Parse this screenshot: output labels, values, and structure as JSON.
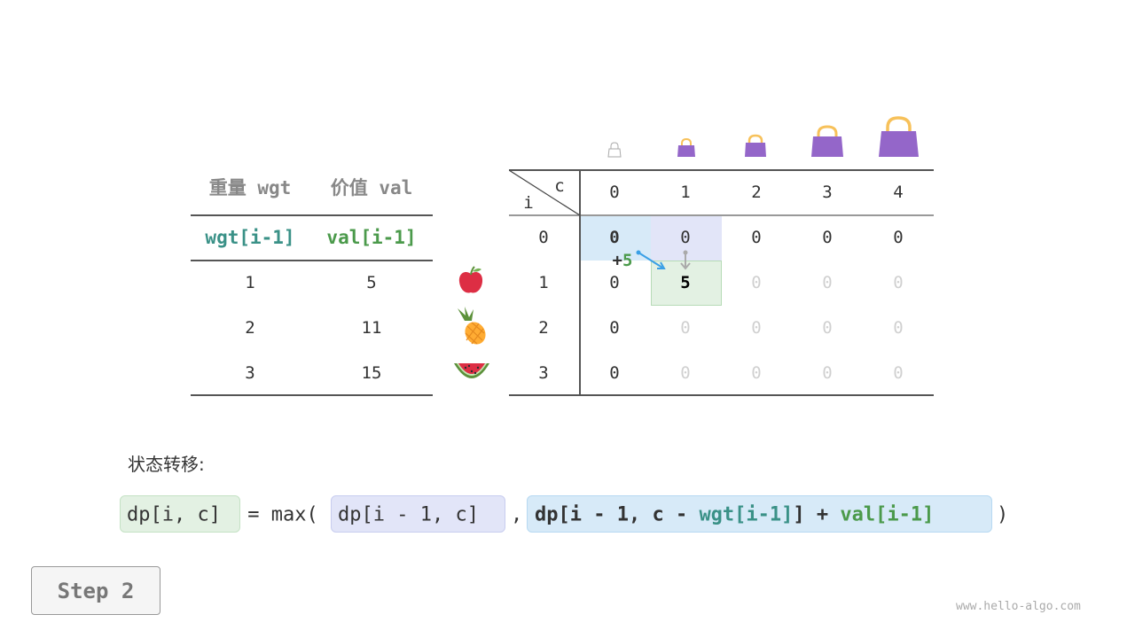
{
  "items_table": {
    "headers": [
      "重量 wgt",
      "价值 val"
    ],
    "subheaders": [
      "wgt[i-1]",
      "val[i-1]"
    ],
    "rows": [
      {
        "wgt": "1",
        "val": "5",
        "icon": "apple-icon"
      },
      {
        "wgt": "2",
        "val": "11",
        "icon": "pineapple-icon"
      },
      {
        "wgt": "3",
        "val": "15",
        "icon": "watermelon-icon"
      }
    ]
  },
  "dp_table": {
    "corner_col": "c",
    "corner_row": "i",
    "col_headers": [
      "0",
      "1",
      "2",
      "3",
      "4"
    ],
    "row_headers": [
      "0",
      "1",
      "2",
      "3"
    ],
    "cells": [
      [
        "0",
        "0",
        "0",
        "0",
        "0"
      ],
      [
        "0",
        "5",
        "0",
        "0",
        "0"
      ],
      [
        "0",
        "0",
        "0",
        "0",
        "0"
      ],
      [
        "0",
        "0",
        "0",
        "0",
        "0"
      ]
    ],
    "bag_icons": [
      "empty-bag-icon",
      "bag-icon",
      "bag-icon",
      "bag-icon",
      "bag-icon"
    ],
    "add_label_sign": "+",
    "add_label_value": "5"
  },
  "formula": {
    "label": "状态转移:",
    "lhs": "dp[i, c]",
    "eq": " = max(",
    "arg1": "dp[i - 1, c]",
    "comma": ",",
    "arg2_a": "dp[i - 1, c - ",
    "arg2_wgt": "wgt[i-1]",
    "arg2_b": "] + ",
    "arg2_val": "val[i-1]",
    "close": ")"
  },
  "step_button": "Step 2",
  "watermark": "www.hello-algo.com",
  "colors": {
    "blue_highlight": "#d7eaf8",
    "purple_highlight": "#e2e5f8",
    "green_highlight": "#e3f1e3",
    "teal": "#3a9187",
    "green": "#4b9a4b",
    "bag": "#9466c9",
    "handle": "#f7c15a"
  }
}
